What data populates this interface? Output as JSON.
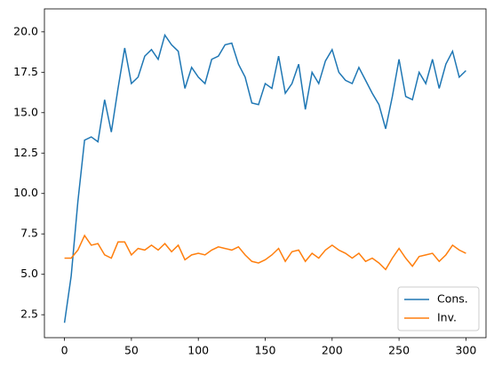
{
  "chart_data": {
    "type": "line",
    "x": [
      0,
      5,
      10,
      15,
      20,
      25,
      30,
      35,
      40,
      45,
      50,
      55,
      60,
      65,
      70,
      75,
      80,
      85,
      90,
      95,
      100,
      105,
      110,
      115,
      120,
      125,
      130,
      135,
      140,
      145,
      150,
      155,
      160,
      165,
      170,
      175,
      180,
      185,
      190,
      195,
      200,
      205,
      210,
      215,
      220,
      225,
      230,
      235,
      240,
      245,
      250,
      255,
      260,
      265,
      270,
      275,
      280,
      285,
      290,
      295,
      300
    ],
    "series": [
      {
        "name": "Cons.",
        "color": "#1f77b4",
        "values": [
          2.0,
          4.9,
          9.5,
          13.3,
          13.5,
          13.2,
          15.8,
          13.8,
          16.5,
          19.0,
          16.8,
          17.2,
          18.5,
          18.9,
          18.3,
          19.8,
          19.2,
          18.8,
          16.5,
          17.8,
          17.2,
          16.8,
          18.3,
          18.5,
          19.2,
          19.3,
          18.0,
          17.2,
          15.6,
          15.5,
          16.8,
          16.5,
          18.5,
          16.2,
          16.8,
          18.0,
          15.2,
          17.5,
          16.8,
          18.2,
          18.9,
          17.5,
          17.0,
          16.8,
          17.8,
          17.0,
          16.2,
          15.5,
          14.0,
          16.0,
          18.3,
          16.0,
          15.8,
          17.5,
          16.8,
          18.3,
          16.5,
          18.0,
          18.8,
          17.2,
          17.6
        ]
      },
      {
        "name": "Inv.",
        "color": "#ff7f0e",
        "values": [
          6.0,
          6.0,
          6.5,
          7.4,
          6.8,
          6.9,
          6.2,
          6.0,
          7.0,
          7.0,
          6.2,
          6.6,
          6.5,
          6.8,
          6.5,
          6.9,
          6.4,
          6.8,
          5.9,
          6.2,
          6.3,
          6.2,
          6.5,
          6.7,
          6.6,
          6.5,
          6.7,
          6.2,
          5.8,
          5.7,
          5.9,
          6.2,
          6.6,
          5.8,
          6.4,
          6.5,
          5.8,
          6.3,
          6.0,
          6.5,
          6.8,
          6.5,
          6.3,
          6.0,
          6.3,
          5.8,
          6.0,
          5.7,
          5.3,
          6.0,
          6.6,
          6.0,
          5.5,
          6.1,
          6.2,
          6.3,
          5.8,
          6.2,
          6.8,
          6.5,
          6.3
        ]
      }
    ],
    "xlim": [
      -15,
      315
    ],
    "xticks": [
      0,
      50,
      100,
      150,
      200,
      250,
      300
    ],
    "ylim": [
      1.08,
      21.42
    ],
    "yticks": [
      2.5,
      {
        "value": 5,
        "label": "5.0"
      },
      7.5,
      {
        "value": 10,
        "label": "10.0"
      },
      12.5,
      {
        "value": 15,
        "label": "15.0"
      },
      17.5,
      {
        "value": 20,
        "label": "20.0"
      }
    ],
    "legend": "lower right"
  }
}
